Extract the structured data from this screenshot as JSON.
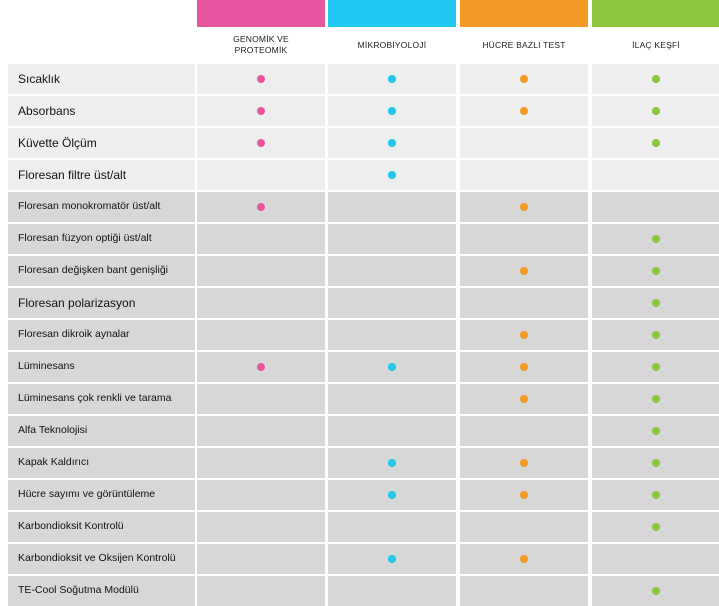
{
  "columns": [
    {
      "label": "GENOMİK VE\nPROTEOMİK",
      "color": "#e8559f"
    },
    {
      "label": "MİKROBİYOLOJİ",
      "color": "#1ec8f0"
    },
    {
      "label": "HÜCRE BAZLI TEST",
      "color": "#f49a26"
    },
    {
      "label": "İLAÇ KEŞFİ",
      "color": "#8cc63f"
    }
  ],
  "rows": [
    {
      "label": "Sıcaklık",
      "marks": [
        true,
        true,
        true,
        true
      ]
    },
    {
      "label": "Absorbans",
      "marks": [
        true,
        true,
        true,
        true
      ]
    },
    {
      "label": "Küvette Ölçüm",
      "marks": [
        true,
        true,
        false,
        true
      ]
    },
    {
      "label": "Floresan filtre üst/alt",
      "marks": [
        false,
        true,
        false,
        false
      ]
    },
    {
      "label": "Floresan monokromatör üst/alt",
      "marks": [
        true,
        false,
        true,
        false
      ]
    },
    {
      "label": "Floresan füzyon optiği üst/alt",
      "marks": [
        false,
        false,
        false,
        true
      ]
    },
    {
      "label": "Floresan değişken bant genişliği",
      "marks": [
        false,
        false,
        true,
        true
      ]
    },
    {
      "label": "Floresan polarizasyon",
      "marks": [
        false,
        false,
        false,
        true
      ]
    },
    {
      "label": "Floresan dikroik aynalar",
      "marks": [
        false,
        false,
        true,
        true
      ]
    },
    {
      "label": "Lüminesans",
      "marks": [
        true,
        true,
        true,
        true
      ]
    },
    {
      "label": "Lüminesans çok renkli ve tarama",
      "marks": [
        false,
        false,
        true,
        true
      ]
    },
    {
      "label": "Alfa Teknolojisi",
      "marks": [
        false,
        false,
        false,
        true
      ]
    },
    {
      "label": "Kapak Kaldırıcı",
      "marks": [
        false,
        true,
        true,
        true
      ]
    },
    {
      "label": "Hücre sayımı ve görüntüleme",
      "marks": [
        false,
        true,
        true,
        true
      ]
    },
    {
      "label": "Karbondioksit Kontrolü",
      "marks": [
        false,
        false,
        false,
        true
      ]
    },
    {
      "label": "Karbondioksit ve Oksijen Kontrolü",
      "marks": [
        false,
        true,
        true,
        false
      ]
    },
    {
      "label": "TE-Cool Soğutma Modülü",
      "marks": [
        false,
        false,
        false,
        true
      ]
    }
  ],
  "colors": {
    "light_cell": "#eeeeee",
    "dark_cell": "#d7d7d7",
    "gap": "#ffffff"
  }
}
